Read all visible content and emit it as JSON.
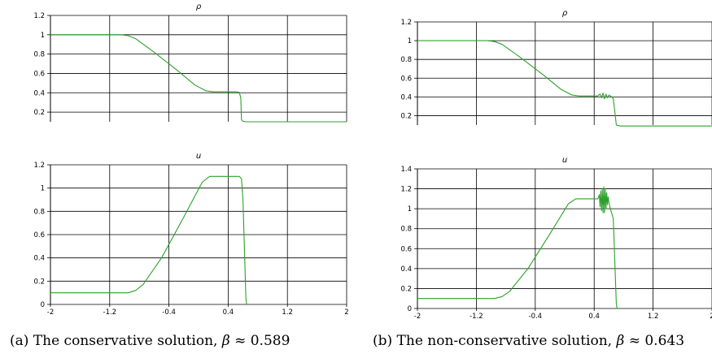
{
  "colors": {
    "curve": "#2ca02c",
    "grid": "#000000",
    "axis_text": "#000000"
  },
  "captions": {
    "a": {
      "prefix": "(a) The conservative solution, ",
      "symbol": "β",
      "approx": " ≈ 0.589"
    },
    "b": {
      "prefix": "(b) The non-conservative solution, ",
      "symbol": "β",
      "approx": " ≈ 0.643"
    }
  },
  "chart_data": [
    {
      "panel": "a",
      "type": "line",
      "title": "ρ",
      "xlim": [
        -2,
        2
      ],
      "ylim": [
        0.1,
        1.2
      ],
      "grid": true,
      "xticks": [
        -2,
        -1.2,
        -0.4,
        0.4,
        1.2,
        2
      ],
      "show_xticks": false,
      "yticks": [
        0.2,
        0.4,
        0.6,
        0.8,
        1,
        1.2
      ],
      "ytick_labels": [
        "0.2",
        "0.4",
        "0.6",
        "0.8",
        "1",
        "1.2"
      ],
      "series": [
        {
          "x": [
            -2,
            -1.05,
            -0.95,
            -0.85,
            -0.6,
            -0.3,
            -0.05,
            0.1,
            0.2,
            0.5,
            0.55,
            0.57,
            0.58,
            0.6,
            0.64,
            2
          ],
          "y": [
            1,
            1,
            0.99,
            0.96,
            0.82,
            0.64,
            0.48,
            0.42,
            0.41,
            0.41,
            0.405,
            0.35,
            0.12,
            0.105,
            0.1,
            0.1
          ]
        }
      ]
    },
    {
      "panel": "a",
      "type": "line",
      "title": "u",
      "xlim": [
        -2,
        2
      ],
      "ylim": [
        0,
        1.2
      ],
      "grid": true,
      "xticks": [
        -2,
        -1.2,
        -0.4,
        0.4,
        1.2,
        2
      ],
      "xtick_labels": [
        "-2",
        "-1.2",
        "-0.4",
        "0.4",
        "1.2",
        "2"
      ],
      "show_xticks": true,
      "yticks": [
        0,
        0.2,
        0.4,
        0.6,
        0.8,
        1,
        1.2
      ],
      "ytick_labels": [
        "0",
        "0.2",
        "0.4",
        "0.6",
        "0.8",
        "1",
        "1.2"
      ],
      "series": [
        {
          "x": [
            -2,
            -0.95,
            -0.85,
            -0.75,
            -0.5,
            -0.2,
            0.05,
            0.15,
            0.25,
            0.55,
            0.58,
            0.6,
            0.64,
            0.65
          ],
          "y": [
            0.1,
            0.1,
            0.12,
            0.17,
            0.4,
            0.75,
            1.05,
            1.1,
            1.1,
            1.1,
            1.08,
            0.9,
            0.05,
            0
          ]
        }
      ]
    },
    {
      "panel": "b",
      "type": "line",
      "title": "ρ",
      "xlim": [
        -2,
        2
      ],
      "ylim": [
        0.1,
        1.2
      ],
      "grid": true,
      "xticks": [
        -2,
        -1.2,
        -0.4,
        0.4,
        1.2,
        2
      ],
      "show_xticks": false,
      "yticks": [
        0.2,
        0.4,
        0.6,
        0.8,
        1,
        1.2
      ],
      "ytick_labels": [
        "0.2",
        "0.4",
        "0.6",
        "0.8",
        "1",
        "1.2"
      ],
      "series": [
        {
          "x": [
            -2,
            -1.05,
            -0.95,
            -0.85,
            -0.6,
            -0.3,
            -0.05,
            0.1,
            0.2,
            0.45,
            0.48,
            0.5,
            0.52,
            0.54,
            0.56,
            0.58,
            0.6,
            0.62,
            0.64,
            0.66,
            0.68,
            0.7,
            0.75,
            2
          ],
          "y": [
            1,
            1,
            0.99,
            0.96,
            0.82,
            0.64,
            0.48,
            0.42,
            0.41,
            0.41,
            0.43,
            0.39,
            0.44,
            0.38,
            0.43,
            0.39,
            0.42,
            0.41,
            0.4,
            0.38,
            0.25,
            0.1,
            0.09,
            0.09
          ]
        }
      ]
    },
    {
      "panel": "b",
      "type": "line",
      "title": "u",
      "xlim": [
        -2,
        2
      ],
      "ylim": [
        0,
        1.4
      ],
      "grid": true,
      "xticks": [
        -2,
        -1.2,
        -0.4,
        0.4,
        1.2,
        2
      ],
      "xtick_labels": [
        "-2",
        "-1.2",
        "-0.4",
        "0.4",
        "1.2",
        "2"
      ],
      "show_xticks": true,
      "yticks": [
        0,
        0.2,
        0.4,
        0.6,
        0.8,
        1,
        1.2,
        1.4
      ],
      "ytick_labels": [
        "0",
        "0.2",
        "0.4",
        "0.6",
        "0.8",
        "1",
        "1.2",
        "1.4"
      ],
      "series": [
        {
          "x": [
            -2,
            -0.95,
            -0.85,
            -0.75,
            -0.5,
            -0.2,
            0.05,
            0.15,
            0.25,
            0.45,
            0.47,
            0.48,
            0.49,
            0.5,
            0.51,
            0.52,
            0.53,
            0.54,
            0.55,
            0.56,
            0.57,
            0.58,
            0.59,
            0.6,
            0.62,
            0.66,
            0.7,
            0.71
          ],
          "y": [
            0.1,
            0.1,
            0.12,
            0.17,
            0.4,
            0.75,
            1.05,
            1.1,
            1.1,
            1.1,
            1.14,
            1.02,
            1.18,
            0.98,
            1.2,
            0.96,
            1.22,
            0.96,
            1.2,
            1.0,
            1.16,
            1.04,
            1.12,
            1.06,
            1.0,
            0.9,
            0.05,
            0
          ]
        }
      ]
    }
  ]
}
